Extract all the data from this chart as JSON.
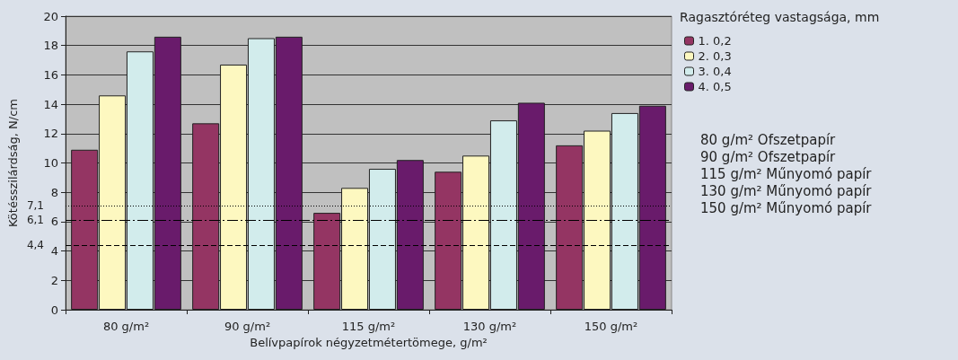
{
  "chart_data": {
    "type": "bar",
    "xlabel": "Belívpapírok négyzetmétertömege, g/m²",
    "ylabel": "Kötésszilárdság, N/cm",
    "legend_title": "Ragasztóréteg vastagsága, mm",
    "categories": [
      "80 g/m²",
      "90 g/m²",
      "115 g/m²",
      "130 g/m²",
      "150 g/m²"
    ],
    "series": [
      {
        "name": "1. 0,2",
        "color": "#943563",
        "values": [
          10.9,
          12.7,
          6.6,
          9.4,
          11.2
        ]
      },
      {
        "name": "2. 0,3",
        "color": "#fdf8c0",
        "values": [
          14.6,
          16.7,
          8.3,
          10.5,
          12.2
        ]
      },
      {
        "name": "3. 0,4",
        "color": "#d2ecec",
        "values": [
          17.6,
          18.5,
          9.6,
          12.9,
          13.4
        ]
      },
      {
        "name": "4. 0,5",
        "color": "#691b6b",
        "values": [
          18.6,
          18.6,
          10.2,
          14.1,
          13.9
        ]
      }
    ],
    "ylim": [
      0,
      20
    ],
    "yticks": [
      0,
      2,
      4,
      6,
      8,
      10,
      12,
      14,
      16,
      18,
      20
    ],
    "grid": "y",
    "legend": "right",
    "ref_lines": [
      {
        "axis": "y",
        "value": 7.1,
        "label": "7,1",
        "color": "#000000",
        "line_style": "dotted"
      },
      {
        "axis": "y",
        "value": 6.1,
        "label": "6,1",
        "color": "#000000",
        "line_style": "dashdot"
      },
      {
        "axis": "y",
        "value": 4.4,
        "label": "4,4",
        "color": "#000000",
        "line_style": "dashed"
      }
    ],
    "annotations": [
      "80 g/m² Ofszetpapír",
      "90 g/m² Ofszetpapír",
      "115 g/m² Műnyomó papír",
      "130 g/m² Műnyomó papír",
      "150 g/m² Műnyomó papír"
    ]
  }
}
